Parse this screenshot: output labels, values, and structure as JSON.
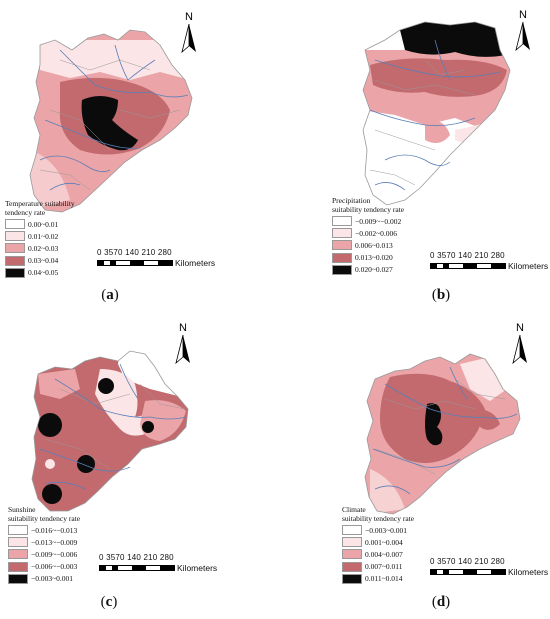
{
  "north_label": "N",
  "scale": {
    "ticks": "0 3570  140 210 280",
    "unit": "Kilometers"
  },
  "colors": {
    "class1": "#ffffff",
    "class2": "#fbe5e6",
    "class3": "#eba5a8",
    "class4": "#c26a6e",
    "class5": "#0b0b0b",
    "rivers": "#5a7fb8",
    "boundaries": "#999999"
  },
  "panels": [
    {
      "id": "a",
      "caption_open": "(",
      "caption_letter": "a",
      "caption_close": ")",
      "legend_title": "Temperature suitability\ntendency rate",
      "legend_classes": [
        "0.00~0.01",
        "0.01~0.02",
        "0.02~0.03",
        "0.03~0.04",
        "0.04~0.05"
      ]
    },
    {
      "id": "b",
      "caption_open": "(",
      "caption_letter": "b",
      "caption_close": ")",
      "legend_title": "Precipitation\nsuitability tendency rate",
      "legend_classes": [
        "−0.009~−0.002",
        "−0.002~0.006",
        "0.006~0.013",
        "0.013~0.020",
        "0.020~0.027"
      ]
    },
    {
      "id": "c",
      "caption_open": "(",
      "caption_letter": "c",
      "caption_close": ")",
      "legend_title": "Sunshine\nsuitability tendency rate",
      "legend_classes": [
        "−0.016~−0.013",
        "−0.013~−0.009",
        "−0.009~−0.006",
        "−0.006~−0.003",
        "−0.003~0.001"
      ]
    },
    {
      "id": "d",
      "caption_open": "(",
      "caption_letter": "d",
      "caption_close": ")",
      "legend_title": "Climate\nsuitability tendency rate",
      "legend_classes": [
        "−0.003~0.001",
        "0.001~0.004",
        "0.004~0.007",
        "0.007~0.011",
        "0.011~0.014"
      ]
    }
  ]
}
